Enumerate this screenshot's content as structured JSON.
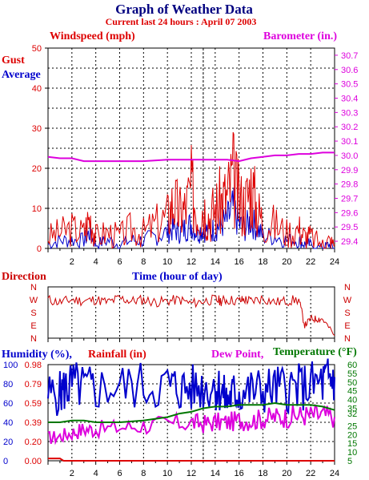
{
  "title": "Graph of Weather Data",
  "subtitle": "Current last 24 hours : April 07 2003",
  "colors": {
    "gust": "#dd0000",
    "average": "#0000cc",
    "barometer": "#dd00dd",
    "direction": "#cc0000",
    "humidity": "#0000cc",
    "rainfall": "#dd0000",
    "dewpoint": "#dd00dd",
    "temperature": "#007700",
    "axis": "#000000",
    "grid": "#000000"
  },
  "chart_data": [
    {
      "type": "line",
      "id": "wind",
      "title": "Windspeed (mph)",
      "right_title": "Barometer (in.)",
      "xlabel": "Time (hour of day)",
      "x_ticks": [
        "2",
        "4",
        "6",
        "8",
        "10",
        "12",
        "14",
        "16",
        "18",
        "20",
        "22",
        "24"
      ],
      "xlim": [
        0,
        24
      ],
      "ylim": [
        0,
        50
      ],
      "y_ticks": [
        "0",
        "10",
        "20",
        "30",
        "40",
        "50"
      ],
      "y2lim": [
        29.35,
        30.75
      ],
      "y2_ticks": [
        "29.4",
        "29.5",
        "29.6",
        "29.7",
        "29.8",
        "29.9",
        "30.0",
        "30.1",
        "30.2",
        "30.3",
        "30.4",
        "30.5",
        "30.6",
        "30.7"
      ],
      "grid": true,
      "legend": [
        "Gust",
        "Average"
      ],
      "series": [
        {
          "name": "Gust",
          "axis": "left",
          "x": [
            0,
            1,
            2,
            3,
            3.5,
            4,
            5,
            6,
            7,
            8,
            9,
            10,
            10.5,
            11,
            11.5,
            12,
            12.5,
            13,
            13.5,
            14,
            14.5,
            15,
            15.5,
            16,
            16.5,
            17,
            17.5,
            18,
            19,
            20,
            21,
            21.5,
            22,
            23,
            23.5,
            24
          ],
          "y": [
            3,
            4,
            5,
            4,
            8,
            3,
            4,
            3,
            5,
            4,
            6,
            8,
            12,
            9,
            10,
            15,
            9,
            11,
            8,
            10,
            12,
            13,
            18,
            12,
            11,
            16,
            10,
            7,
            6,
            4,
            5,
            3,
            3,
            1,
            2,
            1
          ]
        },
        {
          "name": "Average",
          "axis": "left",
          "x": [
            0,
            1,
            2,
            3,
            3.5,
            4,
            5,
            6,
            7,
            8,
            9,
            10,
            10.5,
            11,
            11.5,
            12,
            12.5,
            13,
            13.5,
            14,
            14.5,
            15,
            15.5,
            16,
            16.5,
            17,
            17.5,
            18,
            19,
            20,
            21,
            21.5,
            22,
            23,
            23.5,
            24
          ],
          "y": [
            1,
            2,
            2,
            2,
            4,
            1,
            2,
            1,
            2,
            2,
            3,
            4,
            5,
            4,
            5,
            6,
            4,
            5,
            4,
            5,
            6,
            7,
            10,
            6,
            5,
            7,
            5,
            3,
            3,
            2,
            2,
            1,
            1,
            0,
            1,
            0
          ]
        },
        {
          "name": "Barometer",
          "axis": "right",
          "x": [
            0,
            1,
            2,
            3,
            4,
            6,
            8,
            10,
            12,
            14,
            15,
            16,
            17,
            18,
            19,
            20,
            21,
            22,
            23,
            24
          ],
          "y": [
            29.99,
            29.98,
            29.98,
            29.96,
            29.96,
            29.96,
            29.96,
            29.97,
            29.97,
            29.97,
            29.97,
            29.96,
            29.98,
            29.99,
            30.0,
            30.0,
            30.01,
            30.01,
            30.02,
            30.02
          ]
        }
      ]
    },
    {
      "type": "line",
      "id": "direction",
      "title": "Direction",
      "y_categories": [
        "N",
        "W",
        "S",
        "E",
        "N"
      ],
      "xlim": [
        0,
        24
      ],
      "series": [
        {
          "name": "Direction",
          "x": [
            0,
            1,
            2,
            3,
            4,
            5,
            6,
            7,
            8,
            9,
            10,
            11,
            12,
            13,
            14,
            14.5,
            15,
            16,
            16.5,
            17,
            18,
            19,
            20,
            21,
            21.5,
            22,
            22.5,
            23,
            24
          ],
          "y": [
            3.0,
            2.8,
            3.0,
            2.9,
            3.0,
            2.8,
            3.1,
            2.9,
            3.0,
            2.8,
            2.9,
            3.0,
            2.7,
            2.9,
            3.0,
            2.9,
            3.0,
            2.9,
            3.0,
            2.9,
            3.1,
            2.8,
            2.9,
            3.0,
            1.0,
            1.5,
            1.5,
            1.5,
            0.2
          ]
        }
      ]
    },
    {
      "type": "line",
      "id": "humidity",
      "title_humidity": "Humidity (%),",
      "title_rainfall": "Rainfall (in)",
      "title_dewpoint": "Dew Point,",
      "title_temperature": "Temperature (°F)",
      "xlim": [
        0,
        24
      ],
      "humidity_ticks": [
        "0",
        "20",
        "40",
        "60",
        "80",
        "100"
      ],
      "rain_ticks": [
        "0.00",
        "0.20",
        "0.39",
        "0.59",
        "0.79",
        "0.98"
      ],
      "temp_ticks": [
        "5",
        "10",
        "15",
        "20",
        "25",
        "32",
        "35",
        "40",
        "45",
        "50",
        "55",
        "60"
      ],
      "series": [
        {
          "name": "Humidity",
          "x": [
            0,
            1,
            1.5,
            2,
            3,
            4,
            6,
            8,
            10,
            11,
            12,
            13,
            14,
            14.5,
            15,
            15.5,
            16,
            17,
            18,
            19,
            20,
            21,
            22,
            23,
            23.5,
            24
          ],
          "y": [
            69,
            70,
            76,
            79,
            76,
            75,
            77,
            78,
            78,
            75,
            75,
            77,
            78,
            73,
            62,
            70,
            70,
            73,
            73,
            75,
            76,
            76,
            78,
            81,
            84,
            87
          ]
        },
        {
          "name": "Rainfall",
          "x": [
            0,
            1,
            1.3,
            24
          ],
          "y": [
            0.03,
            0.03,
            0,
            0
          ]
        },
        {
          "name": "Dew Point",
          "x": [
            0,
            1,
            2,
            3,
            4,
            6,
            8,
            10,
            12,
            13,
            14,
            15,
            16,
            17,
            18,
            19,
            20,
            21,
            22,
            23,
            24
          ],
          "y": [
            18,
            19,
            21,
            23,
            23,
            24,
            25,
            26,
            27,
            26,
            27,
            27,
            28,
            28,
            29,
            30,
            30,
            31,
            31,
            31,
            30
          ]
        },
        {
          "name": "Temperature",
          "x": [
            0,
            1,
            2,
            3,
            4,
            6,
            8,
            9,
            10,
            11,
            12,
            13,
            14,
            15,
            16,
            17,
            18,
            19,
            20,
            21,
            22,
            23,
            24
          ],
          "y": [
            27,
            27,
            28,
            28,
            27,
            27,
            28,
            29,
            30,
            32,
            33,
            35,
            36,
            36,
            37,
            37,
            37,
            38,
            37,
            37,
            37,
            36,
            34
          ]
        }
      ]
    }
  ]
}
